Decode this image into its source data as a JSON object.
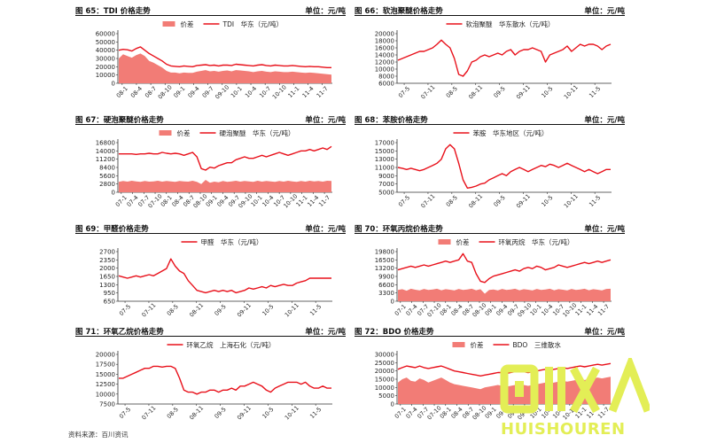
{
  "source": "资料来源：百川资讯",
  "logo": {
    "mark_text": "回收人",
    "word": "HUISHOUREN",
    "color": "#e3ee56"
  },
  "colors": {
    "line": "#e8101a",
    "area": "#f27c76",
    "axis": "#333333"
  },
  "chart_data": [
    {
      "id": "fig65",
      "title": "图 65：TDI 价格走势",
      "unit": "单位：元/吨",
      "type": "line",
      "legend": [
        {
          "name": "价差",
          "kind": "area"
        },
        {
          "name": "TDI　华东（元/吨）",
          "kind": "line"
        }
      ],
      "ylim": [
        0,
        60000
      ],
      "yticks": [
        "60000",
        "50000",
        "40000",
        "30000",
        "20000",
        "10000",
        "0"
      ],
      "xticks": [
        "08-1",
        "08-4",
        "08-7",
        "08-10",
        "09-1",
        "09-4",
        "09-7",
        "09-10",
        "10-1",
        "10-4",
        "10-7",
        "10-10",
        "11-1",
        "11-4",
        "11-7"
      ],
      "series": [
        {
          "name": "TDI　华东（元/吨）",
          "kind": "line",
          "values": [
            40000,
            41000,
            40500,
            39000,
            42000,
            44000,
            40000,
            36000,
            33000,
            30000,
            27000,
            23000,
            21000,
            20500,
            20000,
            21000,
            20500,
            20000,
            21500,
            22000,
            22500,
            21500,
            22000,
            21000,
            22000,
            22000,
            21500,
            23000,
            22500,
            22000,
            21500,
            21000,
            22000,
            22500,
            21500,
            21000,
            22000,
            21500,
            21000,
            21000,
            21500,
            21000,
            20500,
            20000,
            20500,
            20000,
            20000,
            19500,
            19000,
            19000
          ]
        },
        {
          "name": "价差",
          "kind": "area",
          "values": [
            30000,
            35000,
            33000,
            31000,
            34000,
            36000,
            33000,
            27000,
            25000,
            22000,
            19000,
            15000,
            13000,
            13000,
            12000,
            13000,
            12500,
            12500,
            14000,
            15000,
            16000,
            14500,
            15000,
            14000,
            15000,
            15500,
            14500,
            16000,
            15500,
            15000,
            14500,
            13500,
            14500,
            15000,
            14000,
            13500,
            14500,
            14000,
            13500,
            13500,
            14000,
            13500,
            13000,
            12500,
            13000,
            12500,
            12000,
            11500,
            11000,
            10500
          ]
        }
      ]
    },
    {
      "id": "fig66",
      "title": "图 66：软泡聚醚价格走势",
      "unit": "单位：元/吨",
      "type": "line",
      "legend": [
        {
          "name": "软泡聚醚　华东散水（元/吨）",
          "kind": "line"
        }
      ],
      "ylim": [
        6000,
        20000
      ],
      "yticks": [
        "20000",
        "18000",
        "16000",
        "14000",
        "12000",
        "10000",
        "8000",
        "6000"
      ],
      "xticks": [
        "07-5",
        "07-11",
        "08-5",
        "08-11",
        "09-5",
        "09-11",
        "10-5",
        "10-11",
        "11-5"
      ],
      "series": [
        {
          "name": "软泡聚醚　华东散水（元/吨）",
          "kind": "line",
          "values": [
            12500,
            13000,
            13500,
            14000,
            14500,
            15000,
            15000,
            15500,
            16000,
            17000,
            18200,
            17000,
            16000,
            13000,
            8500,
            8000,
            9500,
            12000,
            12500,
            13500,
            14000,
            13500,
            14000,
            14500,
            14000,
            15000,
            15500,
            14000,
            15000,
            15500,
            15500,
            16000,
            15500,
            15000,
            12000,
            14000,
            14500,
            15000,
            15500,
            16500,
            15000,
            16000,
            17000,
            16500,
            17000,
            17000,
            16500,
            15500,
            16500,
            17000
          ]
        }
      ]
    },
    {
      "id": "fig67",
      "title": "图 67：硬泡聚醚价格走势",
      "unit": "单位：元/吨",
      "type": "line",
      "legend": [
        {
          "name": "价差",
          "kind": "area"
        },
        {
          "name": "硬泡聚醚　华东（元/吨）",
          "kind": "line"
        }
      ],
      "ylim": [
        0,
        16800
      ],
      "yticks": [
        "16800",
        "14000",
        "11200",
        "8400",
        "5600",
        "2800",
        "0"
      ],
      "xticks": [
        "07-1",
        "07-4",
        "07-7",
        "07-10",
        "08-1",
        "08-4",
        "08-7",
        "08-10",
        "09-1",
        "09-4",
        "09-7",
        "09-10",
        "10-1",
        "10-4",
        "10-7",
        "10-10",
        "11-1",
        "11-4",
        "11-7"
      ],
      "series": [
        {
          "name": "硬泡聚醚　华东（元/吨）",
          "kind": "line",
          "values": [
            13000,
            13000,
            13000,
            13000,
            12800,
            13000,
            13000,
            13200,
            13000,
            13000,
            13500,
            13200,
            13000,
            13200,
            13000,
            12500,
            13000,
            13500,
            12000,
            8000,
            7500,
            8500,
            8200,
            9000,
            9500,
            10000,
            10000,
            11000,
            11500,
            12000,
            11500,
            11500,
            12000,
            12500,
            12000,
            12500,
            13000,
            13500,
            13000,
            12500,
            13000,
            13500,
            14000,
            14000,
            14500,
            14000,
            14500,
            15000,
            14500,
            15500
          ]
        },
        {
          "name": "价差",
          "kind": "area",
          "values": [
            3500,
            3800,
            3600,
            3900,
            3700,
            3500,
            3800,
            3600,
            3700,
            3900,
            3600,
            3800,
            3700,
            3500,
            3800,
            3700,
            3600,
            3900,
            3500,
            2800,
            4200,
            3200,
            3600,
            3400,
            3800,
            3500,
            3700,
            3900,
            3600,
            3800,
            3700,
            3500,
            3900,
            3600,
            3800,
            3700,
            3500,
            3800,
            3600,
            3900,
            3700,
            3500,
            3800,
            3600,
            3900,
            3700,
            3800,
            3600,
            3900,
            3800
          ]
        }
      ]
    },
    {
      "id": "fig68",
      "title": "图 68：苯胺价格走势",
      "unit": "单位：元/吨",
      "type": "line",
      "legend": [
        {
          "name": "苯胺　华东地区（元/吨）",
          "kind": "line"
        }
      ],
      "ylim": [
        5000,
        17000
      ],
      "yticks": [
        "17000",
        "15000",
        "13000",
        "11000",
        "9000",
        "7000",
        "5000"
      ],
      "xticks": [
        "07-5",
        "07-11",
        "08-5",
        "08-11",
        "09-5",
        "09-11",
        "10-5",
        "10-11",
        "11-5"
      ],
      "series": [
        {
          "name": "苯胺　华东地区（元/吨）",
          "kind": "line",
          "values": [
            11000,
            10800,
            10500,
            10800,
            10500,
            10200,
            10500,
            11000,
            11500,
            12000,
            13000,
            15500,
            16500,
            15500,
            12000,
            8000,
            6000,
            6200,
            6500,
            7000,
            7200,
            8000,
            8500,
            9000,
            9500,
            9000,
            10000,
            10500,
            11000,
            10500,
            10000,
            10500,
            11000,
            11500,
            11200,
            11800,
            11500,
            11000,
            11500,
            12000,
            11500,
            11000,
            10500,
            10000,
            10500,
            10000,
            9500,
            10000,
            10500,
            10500
          ]
        }
      ]
    },
    {
      "id": "fig69",
      "title": "图 69：甲醛价格走势",
      "unit": "单位：元/吨",
      "type": "line",
      "legend": [
        {
          "name": "甲醛　华东（元/吨）",
          "kind": "line"
        }
      ],
      "ylim": [
        650,
        2700
      ],
      "yticks": [
        "2700",
        "2350",
        "2000",
        "1650",
        "1300",
        "950",
        "650"
      ],
      "xticks": [
        "07-5",
        "07-11",
        "08-5",
        "08-11",
        "09-5",
        "09-11",
        "10-5",
        "10-11",
        "11-5"
      ],
      "series": [
        {
          "name": "甲醛　华东（元/吨）",
          "kind": "line",
          "values": [
            1700,
            1650,
            1600,
            1650,
            1700,
            1650,
            1700,
            1750,
            1700,
            1800,
            1900,
            2000,
            2400,
            2100,
            1900,
            1800,
            1500,
            1300,
            1100,
            1050,
            1000,
            1050,
            1100,
            1050,
            1100,
            1050,
            1100,
            1000,
            1050,
            1100,
            1200,
            1150,
            1200,
            1250,
            1200,
            1300,
            1250,
            1300,
            1350,
            1300,
            1300,
            1400,
            1450,
            1500,
            1600,
            1600,
            1600,
            1600,
            1600,
            1600
          ]
        }
      ]
    },
    {
      "id": "fig70",
      "title": "图 70：环氧丙烷价格走势",
      "unit": "单位：元/吨",
      "type": "line",
      "legend": [
        {
          "name": "价差",
          "kind": "area"
        },
        {
          "name": "环氧丙烷　华东（元/吨）",
          "kind": "line"
        }
      ],
      "ylim": [
        0,
        19800
      ],
      "yticks": [
        "19800",
        "16500",
        "13200",
        "9900",
        "6600",
        "3300",
        "0"
      ],
      "xticks": [
        "07-1",
        "07-4",
        "07-7",
        "07-10",
        "08-1",
        "08-4",
        "08-7",
        "08-10",
        "09-1",
        "09-4",
        "09-7",
        "09-10",
        "10-1",
        "10-4",
        "10-7",
        "10-10",
        "11-1",
        "11-4",
        "11-7"
      ],
      "series": [
        {
          "name": "环氧丙烷　华东（元/吨）",
          "kind": "line",
          "values": [
            12500,
            13000,
            13500,
            14000,
            13500,
            14000,
            14500,
            14000,
            14500,
            15000,
            15500,
            16000,
            15500,
            16000,
            16500,
            19000,
            16000,
            15500,
            11000,
            8000,
            7500,
            9000,
            10000,
            10500,
            11000,
            11500,
            12000,
            12500,
            12000,
            13000,
            13500,
            13000,
            14000,
            13500,
            12500,
            13000,
            13500,
            14500,
            14000,
            13500,
            14000,
            14500,
            15000,
            15500,
            15000,
            15500,
            16000,
            15500,
            16000,
            16500
          ]
        },
        {
          "name": "价差",
          "kind": "area",
          "values": [
            4500,
            4800,
            4200,
            5000,
            4600,
            4300,
            4900,
            4500,
            4700,
            5000,
            4400,
            4800,
            4600,
            4300,
            4900,
            4500,
            4700,
            5000,
            4400,
            4800,
            3000,
            4500,
            4700,
            4300,
            4900,
            4500,
            4700,
            5000,
            4400,
            4800,
            4600,
            4300,
            4900,
            4500,
            4700,
            5000,
            4400,
            4800,
            4600,
            4300,
            4900,
            4500,
            4700,
            5000,
            4400,
            4800,
            4600,
            4300,
            4900,
            5000
          ]
        }
      ]
    },
    {
      "id": "fig71",
      "title": "图 71：环氧乙烷价格走势",
      "unit": "单位：元/吨",
      "type": "line",
      "legend": [
        {
          "name": "环氧乙烷　上海石化（元/吨）",
          "kind": "line"
        }
      ],
      "ylim": [
        7500,
        20000
      ],
      "yticks": [
        "20000",
        "17500",
        "15000",
        "12500",
        "10000",
        "7500"
      ],
      "xticks": [
        "07-5",
        "07-11",
        "08-5",
        "08-11",
        "09-5",
        "09-11",
        "10-5",
        "10-11",
        "11-5"
      ],
      "series": [
        {
          "name": "环氧乙烷　上海石化（元/吨）",
          "kind": "line",
          "values": [
            14000,
            14000,
            14500,
            15000,
            15500,
            16000,
            16500,
            16500,
            17000,
            17000,
            16800,
            17000,
            17000,
            16500,
            14000,
            11000,
            10500,
            10500,
            10000,
            10500,
            10500,
            11000,
            11000,
            10500,
            11000,
            11000,
            11500,
            11000,
            12000,
            12000,
            12500,
            13000,
            12500,
            12000,
            11000,
            10500,
            11500,
            12000,
            12500,
            13000,
            13000,
            13000,
            12500,
            13000,
            12000,
            11500,
            11500,
            12000,
            11500,
            11500
          ]
        }
      ]
    },
    {
      "id": "fig72",
      "title": "图 72：BDO 价格走势",
      "unit": "单位：元/吨",
      "type": "line",
      "legend": [
        {
          "name": "价差",
          "kind": "area"
        },
        {
          "name": "BDO　三维散水",
          "kind": "line"
        }
      ],
      "ylim": [
        0,
        30000
      ],
      "yticks": [
        "30000",
        "25000",
        "20000",
        "15000",
        "10000",
        "5000",
        "0"
      ],
      "xticks": [
        "07-1",
        "07-4",
        "07-7",
        "07-10",
        "08-1",
        "08-4",
        "08-7",
        "08-10",
        "09-1",
        "09-4",
        "09-7",
        "09-10",
        "10-1",
        "10-4",
        "10-7",
        "10-10",
        "11-1",
        "11-4",
        "11-7"
      ],
      "series": [
        {
          "name": "BDO　三维散水",
          "kind": "line",
          "values": [
            21000,
            22000,
            23000,
            22500,
            22000,
            23000,
            22000,
            21500,
            22000,
            22500,
            23000,
            22000,
            21000,
            20000,
            19500,
            19000,
            18500,
            18000,
            17500,
            17000,
            17500,
            18000,
            18500,
            19000,
            19000,
            18500,
            19000,
            19500,
            20000,
            19500,
            19000,
            19500,
            20000,
            20500,
            21000,
            20500,
            21000,
            21500,
            22000,
            21500,
            22000,
            22500,
            23000,
            22500,
            23000,
            23500,
            24000,
            23500,
            24000,
            24500
          ]
        },
        {
          "name": "价差",
          "kind": "area",
          "values": [
            13000,
            15000,
            16000,
            14000,
            13500,
            15500,
            14500,
            13000,
            14000,
            15000,
            16000,
            14500,
            13000,
            12000,
            11500,
            11000,
            10500,
            10000,
            9500,
            9000,
            10000,
            10500,
            11000,
            11500,
            11000,
            10500,
            11000,
            11500,
            12000,
            11500,
            11000,
            11500,
            12000,
            12500,
            13000,
            12500,
            13000,
            13500,
            14000,
            13500,
            14000,
            14500,
            15000,
            14500,
            15000,
            15500,
            16000,
            15500,
            16000,
            16500
          ]
        }
      ]
    }
  ]
}
